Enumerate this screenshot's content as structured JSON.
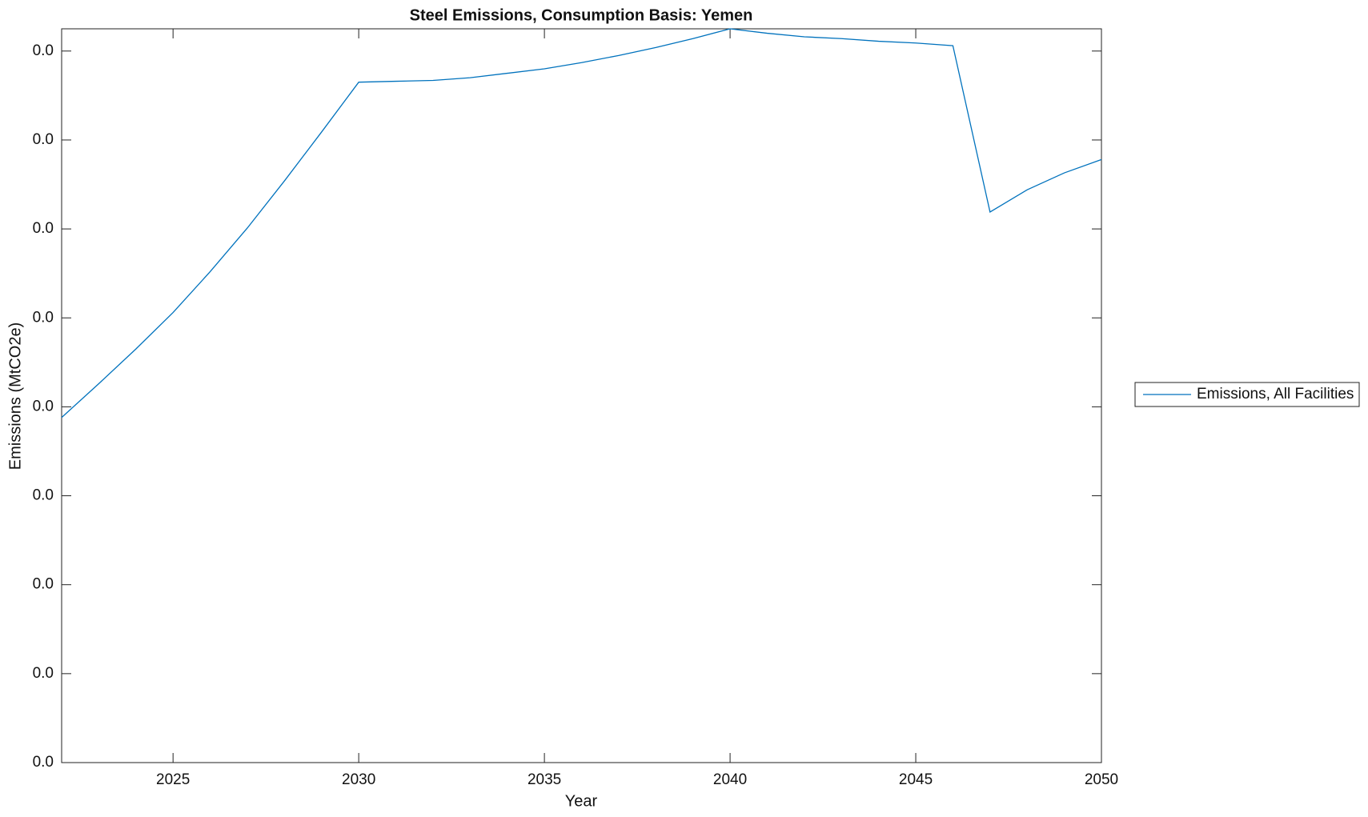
{
  "chart_data": {
    "type": "line",
    "title": "Steel Emissions, Consumption Basis: Yemen",
    "x_label": "Year",
    "y_label": "Emissions (MtCO2e)",
    "x": [
      2022,
      2023,
      2024,
      2025,
      2026,
      2027,
      2028,
      2029,
      2030,
      2031,
      2032,
      2033,
      2034,
      2035,
      2036,
      2037,
      2038,
      2039,
      2040,
      2041,
      2042,
      2043,
      2044,
      2045,
      2046,
      2047,
      2048,
      2049,
      2050
    ],
    "series": [
      {
        "name": "Emissions, All Facilities",
        "color": "#0072bd",
        "values": [
          0.00388,
          0.00426,
          0.00465,
          0.00506,
          0.00552,
          0.00601,
          0.00654,
          0.00709,
          0.00765,
          0.00766,
          0.00767,
          0.0077,
          0.00775,
          0.0078,
          0.00787,
          0.00795,
          0.00804,
          0.00814,
          0.00825,
          0.0082,
          0.00816,
          0.00814,
          0.00811,
          0.00809,
          0.00806,
          0.00619,
          0.00644,
          0.00663,
          0.00678
        ]
      }
    ],
    "xlim": [
      2022,
      2050
    ],
    "xticks": [
      2025,
      2030,
      2035,
      2040,
      2045,
      2050
    ],
    "ylim": [
      0,
      0.00825
    ],
    "yticks": [
      {
        "value": 0,
        "label": "0.0"
      },
      {
        "value": 0.001,
        "label": "0.0"
      },
      {
        "value": 0.002,
        "label": "0.0"
      },
      {
        "value": 0.003,
        "label": "0.0"
      },
      {
        "value": 0.004,
        "label": "0.0"
      },
      {
        "value": 0.005,
        "label": "0.0"
      },
      {
        "value": 0.006,
        "label": "0.0"
      },
      {
        "value": 0.007,
        "label": "0.0"
      },
      {
        "value": 0.008,
        "label": "0.0"
      }
    ],
    "legend": "right"
  }
}
